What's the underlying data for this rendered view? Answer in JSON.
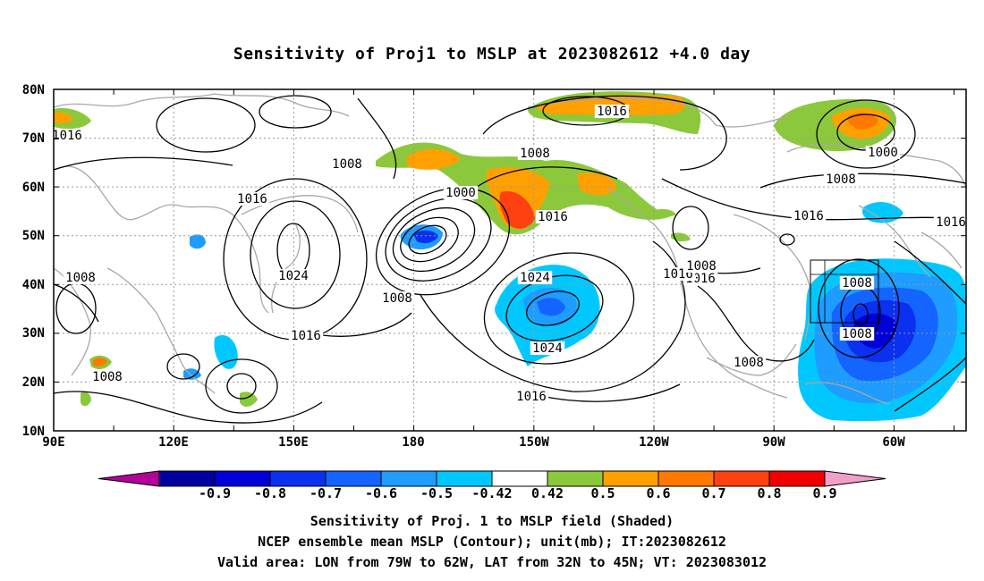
{
  "title": "Sensitivity of Proj1 to MSLP at 2023082612 +4.0 day",
  "map": {
    "lat_labels": [
      "80N",
      "70N",
      "60N",
      "50N",
      "40N",
      "30N",
      "20N",
      "10N"
    ],
    "lon_labels": [
      "90E",
      "120E",
      "150E",
      "180",
      "150W",
      "120W",
      "90W",
      "60W"
    ],
    "contour_labels": [
      "1016",
      "1016",
      "1008",
      "1008",
      "1008",
      "1000",
      "1016",
      "1016",
      "1024",
      "1008",
      "1024",
      "1008",
      "1024",
      "1016",
      "1016",
      "1008",
      "1016",
      "1016",
      "1000",
      "1008",
      "1016",
      "1008",
      "1008",
      "1008",
      "1016",
      "101",
      "1008",
      "1016"
    ],
    "valid_box": {
      "lon": [
        "79W",
        "62W"
      ],
      "lat": [
        "32N",
        "45N"
      ]
    }
  },
  "colorbar": {
    "labels": [
      "-0.9",
      "-0.8",
      "-0.7",
      "-0.6",
      "-0.5",
      "-0.42",
      "0.42",
      "0.5",
      "0.6",
      "0.7",
      "0.8",
      "0.9"
    ],
    "colors": [
      "#b4009a",
      "#0000a0",
      "#0000d8",
      "#0a30f0",
      "#1464ff",
      "#1e9cff",
      "#00c8ff",
      "#ffffff",
      "#8cc83c",
      "#ffa000",
      "#ff7800",
      "#ff4010",
      "#f00000",
      "#f0a0c8"
    ]
  },
  "captions": [
    "Sensitivity of Proj. 1 to MSLP field (Shaded)",
    "NCEP ensemble mean MSLP (Contour); unit(mb); IT:2023082612",
    "Valid area: LON from 79W to 62W, LAT from 32N to 45N; VT: 2023083012"
  ]
}
